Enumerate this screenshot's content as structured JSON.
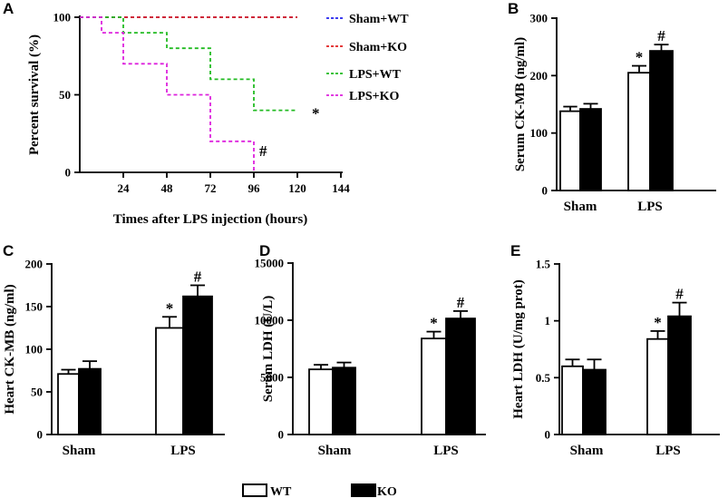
{
  "chart_data": [
    {
      "id": "A",
      "type": "line",
      "letter": "A",
      "xlabel": "Times after LPS injection (hours)",
      "ylabel": "Percent survival (%)",
      "xlim": [
        0,
        144
      ],
      "ylim": [
        0,
        100
      ],
      "xticks": [
        24,
        48,
        72,
        96,
        120,
        144
      ],
      "yticks": [
        0,
        50,
        100
      ],
      "series": [
        {
          "name": "Sham+WT",
          "color": "#2222ee",
          "x": [
            0,
            120
          ],
          "y": [
            100,
            100
          ],
          "annotation": ""
        },
        {
          "name": "Sham+KO",
          "color": "#e02020",
          "x": [
            0,
            120
          ],
          "y": [
            100,
            100
          ],
          "annotation": ""
        },
        {
          "name": "LPS+WT",
          "color": "#22bb22",
          "x": [
            0,
            24,
            24,
            48,
            48,
            72,
            72,
            96,
            96,
            120
          ],
          "y": [
            100,
            100,
            90,
            90,
            80,
            80,
            60,
            60,
            40,
            40
          ],
          "annotation": "*"
        },
        {
          "name": "LPS+KO",
          "color": "#dd22dd",
          "x": [
            0,
            12,
            12,
            24,
            24,
            48,
            48,
            72,
            72,
            96,
            96
          ],
          "y": [
            100,
            100,
            90,
            90,
            70,
            70,
            50,
            50,
            20,
            20,
            0
          ],
          "annotation": "#"
        }
      ]
    },
    {
      "id": "B",
      "type": "bar",
      "letter": "B",
      "ylabel": "Serum CK-MB (ng/ml)",
      "ylim": [
        0,
        300
      ],
      "yticks": [
        0,
        100,
        200,
        300
      ],
      "categories": [
        "Sham",
        "LPS"
      ],
      "series": [
        {
          "name": "WT",
          "values": [
            138,
            205
          ],
          "errors": [
            8,
            12
          ],
          "annotations": [
            "",
            "*"
          ]
        },
        {
          "name": "KO",
          "values": [
            142,
            243
          ],
          "errors": [
            9,
            11
          ],
          "annotations": [
            "",
            "#"
          ]
        }
      ]
    },
    {
      "id": "C",
      "type": "bar",
      "letter": "C",
      "ylabel": "Heart CK-MB (ng/ml)",
      "ylim": [
        0,
        200
      ],
      "yticks": [
        0,
        50,
        100,
        150,
        200
      ],
      "categories": [
        "Sham",
        "LPS"
      ],
      "series": [
        {
          "name": "WT",
          "values": [
            71,
            125
          ],
          "errors": [
            5,
            13
          ],
          "annotations": [
            "",
            "*"
          ]
        },
        {
          "name": "KO",
          "values": [
            77,
            162
          ],
          "errors": [
            9,
            13
          ],
          "annotations": [
            "",
            "#"
          ]
        }
      ]
    },
    {
      "id": "D",
      "type": "bar",
      "letter": "D",
      "ylabel": "Serum LDH (U/L)",
      "ylim": [
        0,
        15000
      ],
      "yticks": [
        0,
        5000,
        10000,
        15000
      ],
      "categories": [
        "Sham",
        "LPS"
      ],
      "series": [
        {
          "name": "WT",
          "values": [
            5700,
            8400
          ],
          "errors": [
            400,
            600
          ],
          "annotations": [
            "",
            "*"
          ]
        },
        {
          "name": "KO",
          "values": [
            5850,
            10150
          ],
          "errors": [
            450,
            650
          ],
          "annotations": [
            "",
            "#"
          ]
        }
      ]
    },
    {
      "id": "E",
      "type": "bar",
      "letter": "E",
      "ylabel": "Heart LDH (U/mg prot)",
      "ylim": [
        0,
        1.5
      ],
      "yticks": [
        0,
        0.5,
        1.0,
        1.5
      ],
      "categories": [
        "Sham",
        "LPS"
      ],
      "series": [
        {
          "name": "WT",
          "values": [
            0.6,
            0.84
          ],
          "errors": [
            0.06,
            0.07
          ],
          "annotations": [
            "",
            "*"
          ]
        },
        {
          "name": "KO",
          "values": [
            0.57,
            1.04
          ],
          "errors": [
            0.09,
            0.12
          ],
          "annotations": [
            "",
            "#"
          ]
        }
      ]
    }
  ],
  "bar_legend": [
    {
      "label": "WT",
      "fill": "#ffffff"
    },
    {
      "label": "KO",
      "fill": "#000000"
    }
  ]
}
